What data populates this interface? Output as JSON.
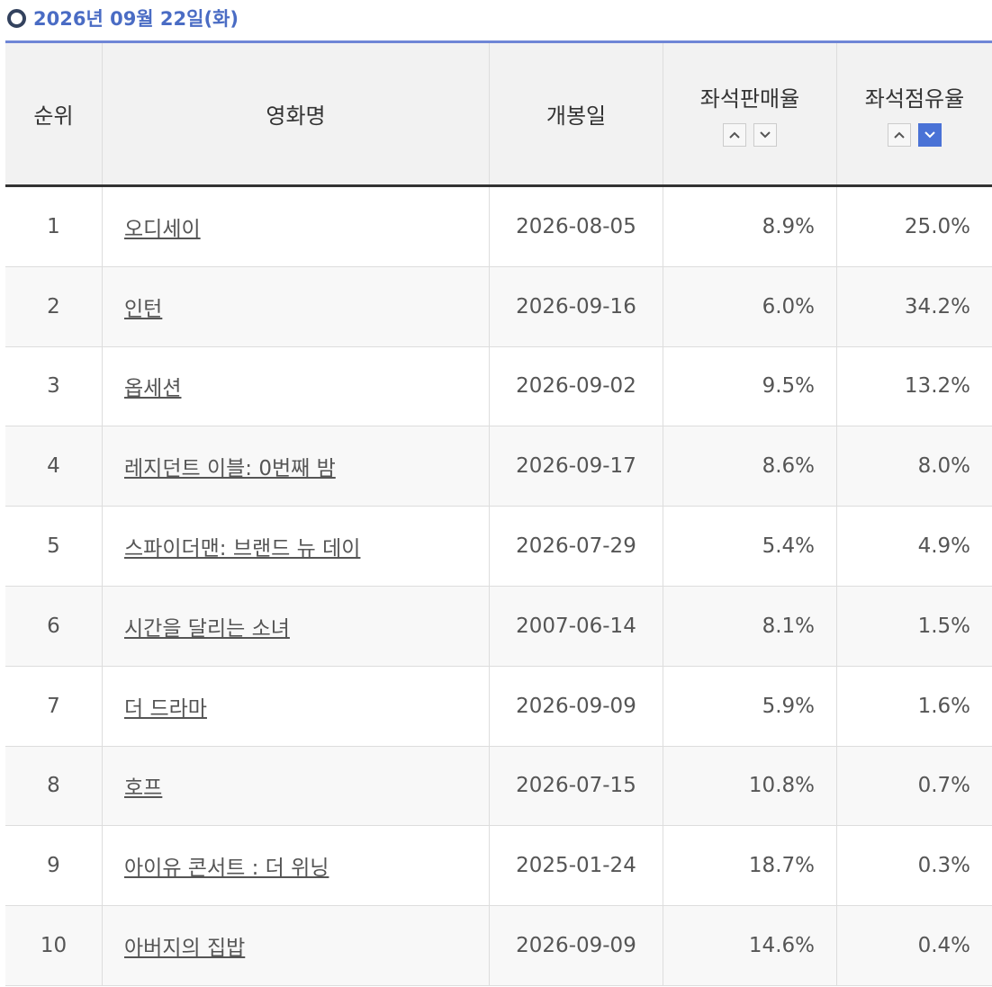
{
  "header": {
    "title": "2026년 09월 22일(화)"
  },
  "table": {
    "columns": [
      "순위",
      "영화명",
      "개봉일",
      "좌석판매율",
      "좌석점유율"
    ],
    "rows": [
      [
        "1",
        "오디세이",
        "2026-08-05",
        "8.9%",
        "25.0%"
      ],
      [
        "2",
        "인턴",
        "2026-09-16",
        "6.0%",
        "34.2%"
      ],
      [
        "3",
        "옵세션",
        "2026-09-02",
        "9.5%",
        "13.2%"
      ],
      [
        "4",
        "레지던트 이블: 0번째 밤",
        "2026-09-17",
        "8.6%",
        "8.0%"
      ],
      [
        "5",
        "스파이더맨: 브랜드 뉴 데이",
        "2026-07-29",
        "5.4%",
        "4.9%"
      ],
      [
        "6",
        "시간을 달리는 소녀",
        "2007-06-14",
        "8.1%",
        "1.5%"
      ],
      [
        "7",
        "더 드라마",
        "2026-09-09",
        "5.9%",
        "1.6%"
      ],
      [
        "8",
        "호프",
        "2026-07-15",
        "10.8%",
        "0.7%"
      ],
      [
        "9",
        "아이유 콘서트 : 더 위닝",
        "2025-01-24",
        "18.7%",
        "0.3%"
      ],
      [
        "10",
        "아버지의 집밥",
        "2026-09-09",
        "14.6%",
        "0.4%"
      ]
    ]
  }
}
